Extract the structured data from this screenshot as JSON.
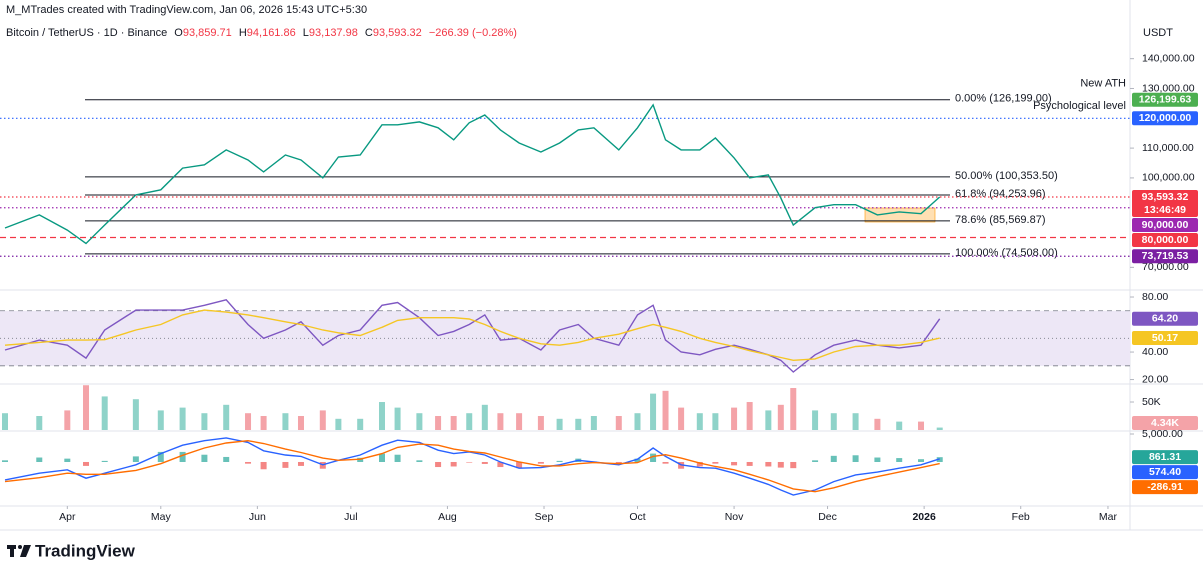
{
  "header": {
    "credit": "M_MTrades created with TradingView.com, Jan 06, 2026 15:43 UTC+5:30",
    "ohlc": [
      {
        "key": "O",
        "value": "93,859.71"
      },
      {
        "key": "H",
        "value": "94,161.86"
      },
      {
        "key": "L",
        "value": "93,137.98"
      },
      {
        "key": "C",
        "value": "93,593.32"
      }
    ],
    "change": "−266.39 (−0.28%)",
    "currency": "USDT"
  },
  "footer": {
    "logo": "TradingView"
  },
  "chart_data": [
    {
      "type": "line",
      "x": [
        -20,
        -9,
        0,
        6,
        12,
        22,
        30,
        37,
        44,
        51,
        58,
        63,
        70,
        75,
        82,
        87,
        94,
        101,
        106,
        113,
        119,
        124,
        129,
        134,
        139,
        145,
        152,
        158,
        164,
        169,
        177,
        183,
        188,
        192,
        197,
        203,
        208,
        214,
        219,
        225,
        229,
        233,
        240,
        246,
        253,
        260,
        267,
        274,
        280
      ],
      "xlim": [
        -20,
        343
      ],
      "xticks": [
        {
          "value": 0,
          "label": "Apr"
        },
        {
          "value": 30,
          "label": "May"
        },
        {
          "value": 61,
          "label": "Jun"
        },
        {
          "value": 91,
          "label": "Jul"
        },
        {
          "value": 122,
          "label": "Aug"
        },
        {
          "value": 153,
          "label": "Sep"
        },
        {
          "value": 183,
          "label": "Oct"
        },
        {
          "value": 214,
          "label": "Nov"
        },
        {
          "value": 244,
          "label": "Dec"
        },
        {
          "value": 275,
          "label": "2026"
        },
        {
          "value": 306,
          "label": "Feb"
        },
        {
          "value": 334,
          "label": "Mar"
        }
      ],
      "series": [
        {
          "name": "Bitcoin / TetherUS · 1D · Binance",
          "color": "#089981",
          "values": [
            83200,
            87600,
            82500,
            78000,
            84200,
            94300,
            96000,
            103300,
            104400,
            109400,
            106000,
            102000,
            107700,
            106000,
            100000,
            107000,
            107700,
            117800,
            117800,
            118800,
            116800,
            112800,
            118500,
            121100,
            116100,
            111700,
            108700,
            111700,
            116100,
            116800,
            109400,
            116800,
            124500,
            112800,
            109400,
            109400,
            113400,
            106700,
            100000,
            101000,
            93300,
            84200,
            90000,
            91000,
            91000,
            87600,
            88600,
            88000,
            93593.32
          ]
        }
      ],
      "ylim": [
        62400,
        152300
      ],
      "yticks": [
        {
          "value": 140000,
          "label": "140,000.00"
        },
        {
          "value": 130000,
          "label": "130,000.00"
        },
        {
          "value": 110000,
          "label": "110,000.00"
        },
        {
          "value": 100000,
          "label": "100,000.00"
        },
        {
          "value": 70000,
          "label": "70,000.00"
        }
      ],
      "levels": [
        {
          "value": 126199,
          "label": "0.00% (126,199.00)"
        },
        {
          "value": 100353.5,
          "label": "50.00% (100,353.50)"
        },
        {
          "value": 94253.96,
          "label": "61.8% (94,253.96)"
        },
        {
          "value": 85569.87,
          "label": "78.6% (85,569.87)"
        },
        {
          "value": 74508,
          "label": "100.00% (74,508.00)"
        }
      ],
      "level_color": "#131722",
      "price_lines": [
        {
          "value": 126199.63,
          "label": "126,199.63",
          "color": "#4caf50",
          "style": "none",
          "annotation": "New ATH"
        },
        {
          "value": 120000,
          "label": "120,000.00",
          "color": "#2962ff",
          "style": "dotted",
          "annotation": "Psychological level"
        },
        {
          "value": 93593.32,
          "label": "93,593.32",
          "color": "#f23645",
          "style": "dotted",
          "countdown": "13:46:49"
        },
        {
          "value": 90000,
          "label": "90,000.00",
          "color": "#9c27b0",
          "style": "dotted"
        },
        {
          "value": 80000,
          "label": "80,000.00",
          "color": "#f23645",
          "style": "dashed"
        },
        {
          "value": 73719.53,
          "label": "73,719.53",
          "color": "#7b1fa2",
          "style": "dotted"
        }
      ],
      "grid": false
    },
    {
      "type": "line",
      "series": [
        {
          "color": "#7e57c2",
          "values": [
            41.5,
            48.7,
            45,
            35.6,
            56,
            70.5,
            70.5,
            70.5,
            74,
            78,
            60,
            50,
            56,
            62,
            45,
            52,
            56,
            74,
            76,
            65,
            52,
            55,
            60,
            67,
            48.7,
            50,
            41.5,
            56,
            60,
            50,
            45,
            67,
            74,
            48.7,
            40,
            38,
            42,
            45,
            42,
            38,
            34,
            25.5,
            38,
            45,
            48.7,
            45,
            43,
            45,
            64.2
          ],
          "tag": {
            "value": 64.2,
            "label": "64.20"
          }
        },
        {
          "color": "#f5c623",
          "values": [
            45,
            47,
            48.7,
            48.7,
            49,
            56,
            60,
            67,
            70.5,
            69,
            67,
            65,
            62,
            60,
            56,
            54,
            52,
            58,
            63,
            65,
            65,
            65,
            64,
            60,
            55,
            50,
            46,
            45,
            47,
            50,
            53,
            57,
            60,
            58,
            55,
            50,
            47,
            44,
            41,
            38,
            36,
            34,
            35,
            40,
            44,
            45,
            45,
            47,
            50.17
          ],
          "tag": {
            "value": 50.17,
            "label": "50.17"
          }
        }
      ],
      "ylim": [
        17.5,
        85.1
      ],
      "yticks": [
        {
          "value": 80,
          "label": "80.00"
        },
        {
          "value": 40,
          "label": "40.00"
        },
        {
          "value": 20,
          "label": "20.00"
        }
      ],
      "band": [
        30,
        70
      ],
      "band_color": "#ede7f6",
      "midline": 50
    },
    {
      "type": "bar",
      "series": [
        {
          "values": [
            30000,
            25000,
            35000,
            80000,
            60000,
            55000,
            35000,
            40000,
            30000,
            45000,
            30000,
            25000,
            30000,
            25000,
            35000,
            20000,
            20000,
            50000,
            40000,
            30000,
            25000,
            25000,
            30000,
            45000,
            30000,
            30000,
            25000,
            20000,
            20000,
            25000,
            25000,
            30000,
            65000,
            70000,
            40000,
            30000,
            30000,
            40000,
            50000,
            35000,
            45000,
            75000,
            35000,
            30000,
            30000,
            20000,
            15000,
            15000,
            4340
          ],
          "tag": {
            "value": 4340,
            "label": "4.34K"
          }
        }
      ],
      "up_color": "#8fd3c9",
      "down_color": "#f4a3a8",
      "ylim": [
        0,
        80400
      ],
      "yticks": [
        {
          "value": 50000,
          "label": "50K"
        }
      ]
    },
    {
      "type": "line",
      "series": [
        {
          "color": "#2962ff",
          "values": [
            -3200,
            -2000,
            -1400,
            -2900,
            -2000,
            -500,
            1500,
            3000,
            3800,
            4300,
            3500,
            2000,
            1250,
            1000,
            -500,
            300,
            1250,
            3000,
            3900,
            3500,
            2100,
            1500,
            1800,
            1250,
            0,
            -1100,
            -1000,
            -500,
            300,
            0,
            -500,
            500,
            2500,
            1000,
            -500,
            -1000,
            -1100,
            -2000,
            -2900,
            -4000,
            -5000,
            -5900,
            -5000,
            -3500,
            -2300,
            -1800,
            -1100,
            -500,
            574.4
          ],
          "tag": {
            "value": 574.4,
            "label": "574.40"
          }
        },
        {
          "color": "#ff6d00",
          "values": [
            -3500,
            -2800,
            -2000,
            -2200,
            -2200,
            -1500,
            -300,
            1200,
            2500,
            3400,
            3800,
            3300,
            2300,
            1700,
            700,
            300,
            500,
            1500,
            2600,
            3200,
            3000,
            2300,
            1900,
            1600,
            900,
            0,
            -700,
            -700,
            -300,
            -100,
            -300,
            -100,
            1000,
            1300,
            700,
            -200,
            -800,
            -1400,
            -2200,
            -3200,
            -4000,
            -4800,
            -5300,
            -4600,
            -3500,
            -2600,
            -1800,
            -1000,
            -286.91
          ],
          "tag": {
            "value": -286.91,
            "label": "-286.91"
          }
        }
      ],
      "histogram_tag": {
        "value": 861.31,
        "label": "861.31",
        "color": "#26a69a"
      },
      "up_color": "#26a69a",
      "down_color": "#ef5350",
      "ylim": [
        -7680,
        5357
      ],
      "yticks": [
        {
          "value": 5000,
          "label": "5,000.00"
        }
      ]
    }
  ]
}
